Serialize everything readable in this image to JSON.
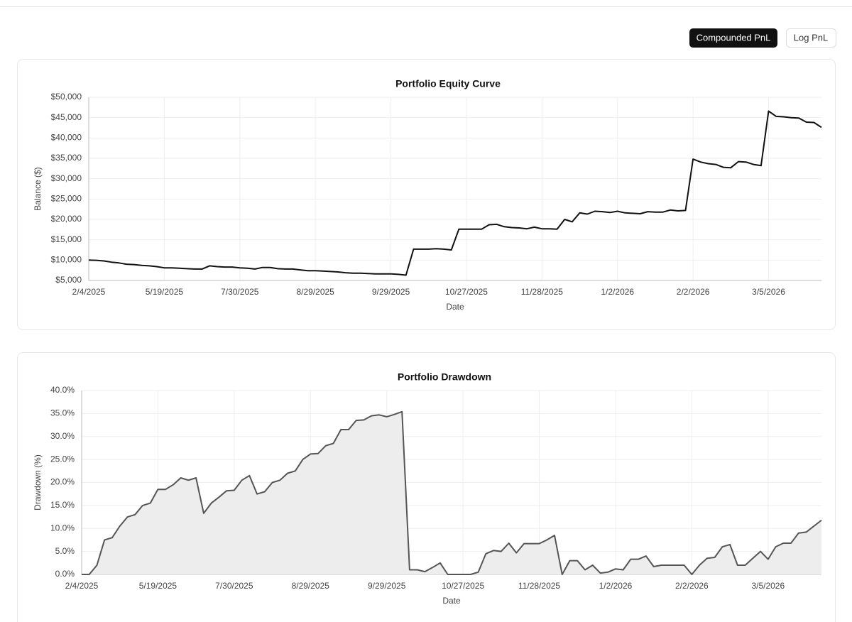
{
  "controls": {
    "buttons": [
      "Compounded PnL",
      "Log PnL"
    ],
    "active": 0
  },
  "chart_data": [
    {
      "type": "line",
      "title": "Portfolio Equity Curve",
      "x_label": "Date",
      "y_label": "Balance ($)",
      "categories": [
        "2/4/2025",
        null,
        null,
        null,
        null,
        null,
        null,
        null,
        null,
        null,
        "5/19/2025",
        null,
        null,
        null,
        null,
        null,
        null,
        null,
        null,
        null,
        "7/30/2025",
        null,
        null,
        null,
        null,
        null,
        null,
        null,
        null,
        null,
        "8/29/2025",
        null,
        null,
        null,
        null,
        null,
        null,
        null,
        null,
        null,
        "9/29/2025",
        null,
        null,
        null,
        null,
        null,
        null,
        null,
        null,
        null,
        "10/27/2025",
        null,
        null,
        null,
        null,
        null,
        null,
        null,
        null,
        null,
        "11/28/2025",
        null,
        null,
        null,
        null,
        null,
        null,
        null,
        null,
        null,
        "1/2/2026",
        null,
        null,
        null,
        null,
        null,
        null,
        null,
        null,
        null,
        "2/2/2026",
        null,
        null,
        null,
        null,
        null,
        null,
        null,
        null,
        null,
        "3/5/2026",
        null,
        null,
        null,
        null,
        null,
        null,
        null
      ],
      "series": [
        {
          "name": "Balance",
          "color": "#111111",
          "values": [
            10000,
            9950,
            9800,
            9500,
            9300,
            9000,
            8900,
            8700,
            8600,
            8400,
            8100,
            8100,
            8000,
            7900,
            7800,
            7800,
            8600,
            8400,
            8300,
            8300,
            8100,
            8000,
            7800,
            8200,
            8200,
            7900,
            7800,
            7800,
            7600,
            7400,
            7400,
            7300,
            7200,
            7100,
            6900,
            6800,
            6800,
            6700,
            6600,
            6600,
            6600,
            6500,
            6300,
            12700,
            12700,
            12700,
            12800,
            12700,
            12500,
            17600,
            17600,
            17600,
            17600,
            18700,
            18800,
            18200,
            18000,
            17900,
            17700,
            18100,
            17700,
            17700,
            17600,
            20000,
            19400,
            21600,
            21300,
            22000,
            21900,
            21700,
            22000,
            21600,
            21500,
            21400,
            21900,
            21800,
            21800,
            22300,
            22100,
            22200,
            34800,
            34100,
            33700,
            33500,
            32800,
            32700,
            34200,
            34100,
            33500,
            33200,
            46600,
            45300,
            45200,
            45000,
            44900,
            43900,
            43800,
            42600
          ]
        }
      ],
      "ylim": [
        5000,
        50000
      ],
      "yticks": [
        {
          "value": 5000,
          "label": "$5,000"
        },
        {
          "value": 10000,
          "label": "$10,000"
        },
        {
          "value": 15000,
          "label": "$15,000"
        },
        {
          "value": 20000,
          "label": "$20,000"
        },
        {
          "value": 25000,
          "label": "$25,000"
        },
        {
          "value": 30000,
          "label": "$30,000"
        },
        {
          "value": 35000,
          "label": "$35,000"
        },
        {
          "value": 40000,
          "label": "$40,000"
        },
        {
          "value": 45000,
          "label": "$45,000"
        },
        {
          "value": 50000,
          "label": "$50,000"
        }
      ],
      "grid": true
    },
    {
      "type": "area",
      "title": "Portfolio Drawdown",
      "x_label": "Date",
      "y_label": "Drawdown (%)",
      "categories": [
        "2/4/2025",
        null,
        null,
        null,
        null,
        null,
        null,
        null,
        null,
        null,
        "5/19/2025",
        null,
        null,
        null,
        null,
        null,
        null,
        null,
        null,
        null,
        "7/30/2025",
        null,
        null,
        null,
        null,
        null,
        null,
        null,
        null,
        null,
        "8/29/2025",
        null,
        null,
        null,
        null,
        null,
        null,
        null,
        null,
        null,
        "9/29/2025",
        null,
        null,
        null,
        null,
        null,
        null,
        null,
        null,
        null,
        "10/27/2025",
        null,
        null,
        null,
        null,
        null,
        null,
        null,
        null,
        null,
        "11/28/2025",
        null,
        null,
        null,
        null,
        null,
        null,
        null,
        null,
        null,
        "1/2/2026",
        null,
        null,
        null,
        null,
        null,
        null,
        null,
        null,
        null,
        "2/2/2026",
        null,
        null,
        null,
        null,
        null,
        null,
        null,
        null,
        null,
        "3/5/2026",
        null,
        null,
        null,
        null,
        null,
        null,
        null
      ],
      "series": [
        {
          "name": "Drawdown",
          "color": "#555555",
          "fill": "#ededed",
          "values": [
            0,
            0,
            2,
            7.5,
            8,
            10.5,
            12.5,
            13,
            15,
            15.5,
            18.5,
            18.5,
            19.5,
            21,
            20.5,
            21,
            13.3,
            15.5,
            16.8,
            18.2,
            18.3,
            20.5,
            21.5,
            17.5,
            18,
            20,
            20.5,
            22,
            22.5,
            25,
            26.2,
            26.3,
            28,
            28.5,
            31.5,
            31.5,
            33.5,
            33.6,
            34.5,
            34.7,
            34.3,
            34.8,
            35.4,
            1,
            1,
            0.6,
            1.5,
            2.5,
            0,
            0,
            0,
            0,
            0.5,
            4.5,
            5.2,
            5,
            6.8,
            4.7,
            6.7,
            6.7,
            6.7,
            7.5,
            8.5,
            0,
            3,
            3,
            1,
            2,
            0.3,
            0.5,
            1.2,
            1,
            3.3,
            3.3,
            4,
            1.7,
            2,
            2,
            2,
            2,
            0,
            2,
            3.5,
            3.7,
            6,
            6.5,
            2,
            2,
            3.5,
            5,
            3.3,
            6,
            6.8,
            6.8,
            9,
            9.2,
            10.5,
            11.8
          ]
        }
      ],
      "ylim": [
        0,
        40
      ],
      "yticks": [
        {
          "value": 0,
          "label": "0.0%"
        },
        {
          "value": 5,
          "label": "5.0%"
        },
        {
          "value": 10,
          "label": "10.0%"
        },
        {
          "value": 15,
          "label": "15.0%"
        },
        {
          "value": 20,
          "label": "20.0%"
        },
        {
          "value": 25,
          "label": "25.0%"
        },
        {
          "value": 30,
          "label": "30.0%"
        },
        {
          "value": 35,
          "label": "35.0%"
        },
        {
          "value": 40,
          "label": "40.0%"
        }
      ],
      "grid": true
    }
  ]
}
